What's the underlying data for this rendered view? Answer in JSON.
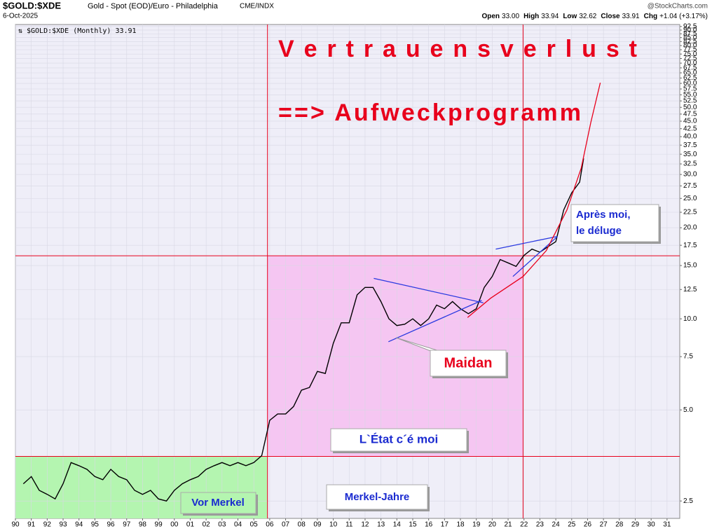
{
  "header": {
    "symbol": "$GOLD:$XDE",
    "description": "Gold - Spot (EOD)/Euro - Philadelphia",
    "exchange": "CME/INDX",
    "date": "6-Oct-2025",
    "source": "@StockCharts.com",
    "quote": [
      {
        "label": "Open",
        "value": "33.00"
      },
      {
        "label": "High",
        "value": "33.94"
      },
      {
        "label": "Low",
        "value": "32.62"
      },
      {
        "label": "Close",
        "value": "33.91"
      },
      {
        "label": "Chg",
        "value": "+1.04 (+3.17%)"
      }
    ]
  },
  "chart_data": {
    "type": "line",
    "log_y": true,
    "grid": true,
    "xlim": [
      1990,
      2031.8
    ],
    "ylim": [
      2.19,
      93.9
    ],
    "xticks": [
      {
        "value": 1990,
        "label": "90"
      },
      {
        "value": 1991,
        "label": "91"
      },
      {
        "value": 1992,
        "label": "92"
      },
      {
        "value": 1993,
        "label": "93"
      },
      {
        "value": 1994,
        "label": "94"
      },
      {
        "value": 1995,
        "label": "95"
      },
      {
        "value": 1996,
        "label": "96"
      },
      {
        "value": 1997,
        "label": "97"
      },
      {
        "value": 1998,
        "label": "98"
      },
      {
        "value": 1999,
        "label": "99"
      },
      {
        "value": 2000,
        "label": "00"
      },
      {
        "value": 2001,
        "label": "01"
      },
      {
        "value": 2002,
        "label": "02"
      },
      {
        "value": 2003,
        "label": "03"
      },
      {
        "value": 2004,
        "label": "04"
      },
      {
        "value": 2005,
        "label": "05"
      },
      {
        "value": 2006,
        "label": "06"
      },
      {
        "value": 2007,
        "label": "07"
      },
      {
        "value": 2008,
        "label": "08"
      },
      {
        "value": 2009,
        "label": "09"
      },
      {
        "value": 2010,
        "label": "10"
      },
      {
        "value": 2011,
        "label": "11"
      },
      {
        "value": 2012,
        "label": "12"
      },
      {
        "value": 2013,
        "label": "13"
      },
      {
        "value": 2014,
        "label": "14"
      },
      {
        "value": 2015,
        "label": "15"
      },
      {
        "value": 2016,
        "label": "16"
      },
      {
        "value": 2017,
        "label": "17"
      },
      {
        "value": 2018,
        "label": "18"
      },
      {
        "value": 2019,
        "label": "19"
      },
      {
        "value": 2020,
        "label": "20"
      },
      {
        "value": 2021,
        "label": "21"
      },
      {
        "value": 2022,
        "label": "22"
      },
      {
        "value": 2023,
        "label": "23"
      },
      {
        "value": 2024,
        "label": "24"
      },
      {
        "value": 2025,
        "label": "25"
      },
      {
        "value": 2026,
        "label": "26"
      },
      {
        "value": 2027,
        "label": "27"
      },
      {
        "value": 2028,
        "label": "28"
      },
      {
        "value": 2029,
        "label": "29"
      },
      {
        "value": 2030,
        "label": "30"
      },
      {
        "value": 2031,
        "label": "31"
      }
    ],
    "yticks": [
      2.5,
      {
        "value": 5,
        "label": "5.0"
      },
      7.5,
      {
        "value": 10,
        "label": "10.0"
      },
      12.5,
      {
        "value": 15,
        "label": "15.0"
      },
      17.5,
      {
        "value": 20,
        "label": "20.0"
      },
      22.5,
      {
        "value": 25,
        "label": "25.0"
      },
      27.5,
      {
        "value": 30,
        "label": "30.0"
      },
      32.5,
      {
        "value": 35,
        "label": "35.0"
      },
      37.5,
      {
        "value": 40,
        "label": "40.0"
      },
      42.5,
      {
        "value": 45,
        "label": "45.0"
      },
      47.5,
      {
        "value": 50,
        "label": "50.0"
      },
      52.5,
      {
        "value": 55,
        "label": "55.0"
      },
      57.5,
      {
        "value": 60,
        "label": "60.0"
      },
      62.5,
      {
        "value": 65,
        "label": "65.0"
      },
      67.5,
      {
        "value": 70,
        "label": "70.0"
      },
      72.5,
      {
        "value": 75,
        "label": "75.0"
      },
      77.5,
      {
        "value": 80,
        "label": "80.0"
      },
      82.5,
      {
        "value": 85,
        "label": "85.0"
      },
      87.5,
      {
        "value": 90,
        "label": "90.0"
      },
      92.5
    ],
    "x": [
      1990.5,
      1991,
      1991.5,
      1992,
      1992.5,
      1993,
      1993.5,
      1994,
      1994.5,
      1995,
      1995.5,
      1996,
      1996.5,
      1997,
      1997.5,
      1998,
      1998.5,
      1999,
      1999.5,
      2000,
      2000.5,
      2001,
      2001.5,
      2002,
      2002.5,
      2003,
      2003.5,
      2004,
      2004.5,
      2005,
      2005.5,
      2006,
      2006.5,
      2007,
      2007.5,
      2008,
      2008.5,
      2009,
      2009.5,
      2010,
      2010.5,
      2011,
      2011.5,
      2012,
      2012.5,
      2013,
      2013.5,
      2014,
      2014.5,
      2015,
      2015.5,
      2016,
      2016.5,
      2017,
      2017.5,
      2018,
      2018.5,
      2019,
      2019.5,
      2020,
      2020.5,
      2021,
      2021.5,
      2022,
      2022.5,
      2023,
      2023.5,
      2024,
      2024.5,
      2025,
      2025.5,
      2025.75
    ],
    "series": [
      {
        "name": "$GOLD:$XDE (Monthly)",
        "color": "#000000",
        "values": [
          2.85,
          3.01,
          2.71,
          2.63,
          2.54,
          2.85,
          3.35,
          3.27,
          3.18,
          3.01,
          2.94,
          3.18,
          3.01,
          2.94,
          2.71,
          2.63,
          2.71,
          2.54,
          2.5,
          2.71,
          2.85,
          2.94,
          3.01,
          3.18,
          3.27,
          3.35,
          3.27,
          3.35,
          3.27,
          3.35,
          3.53,
          4.62,
          4.85,
          4.85,
          5.13,
          5.81,
          5.93,
          6.7,
          6.6,
          8.3,
          9.7,
          9.7,
          12.0,
          12.7,
          12.7,
          11.4,
          10.0,
          9.5,
          9.6,
          10.0,
          9.5,
          10.0,
          11.1,
          10.8,
          11.4,
          10.8,
          10.4,
          10.8,
          12.7,
          13.8,
          15.7,
          15.3,
          14.9,
          16.2,
          17.0,
          16.6,
          17.3,
          18.0,
          22.9,
          26.1,
          28.3,
          33.91
        ]
      }
    ],
    "hlines": [
      {
        "value": 16.16,
        "color": "#e8001c"
      },
      {
        "value": 3.51,
        "color": "#e8001c"
      }
    ],
    "vlines": [
      {
        "value": 2005.86,
        "color": "#e8001c"
      },
      {
        "value": 2021.94,
        "color": "#e8001c"
      }
    ],
    "regions": [
      {
        "x": [
          1990,
          2005.86
        ],
        "y": [
          2.19,
          3.51
        ],
        "color": "#b4f5b0"
      },
      {
        "x": [
          2005.86,
          2021.94
        ],
        "y": [
          3.51,
          16.16
        ],
        "color": "#f5c6f2"
      }
    ],
    "trendlines": [
      {
        "color": "#2a3ae0",
        "x": [
          2012.55,
          2019.44
        ],
        "y": [
          13.6,
          11.3
        ]
      },
      {
        "color": "#2a3ae0",
        "x": [
          2013.47,
          2019.34
        ],
        "y": [
          8.4,
          11.5
        ]
      },
      {
        "color": "#2a3ae0",
        "x": [
          2020.22,
          2024.05
        ],
        "y": [
          17.0,
          18.7
        ]
      },
      {
        "color": "#2a3ae0",
        "x": [
          2021.3,
          2024.1
        ],
        "y": [
          13.8,
          18.7
        ]
      },
      {
        "color": "#e8001c",
        "x": [
          2018.45,
          2019.9,
          2021.94,
          2023.4,
          2024.7,
          2025.6,
          2026.2,
          2026.8
        ],
        "y": [
          10.1,
          11.7,
          13.8,
          16.8,
          22.9,
          31.5,
          44.5,
          60.3
        ]
      }
    ],
    "annotations": [
      {
        "text": "V e r t r a u e n s v e r l u s t"
      },
      {
        "text": "==> Aufweckprogramm"
      },
      {
        "text": "Après moi,"
      },
      {
        "text": "le déluge"
      },
      {
        "text": "Maidan"
      },
      {
        "text": "L`État c´é moi"
      },
      {
        "text": "Vor Merkel"
      },
      {
        "text": "Merkel-Jahre"
      }
    ]
  }
}
